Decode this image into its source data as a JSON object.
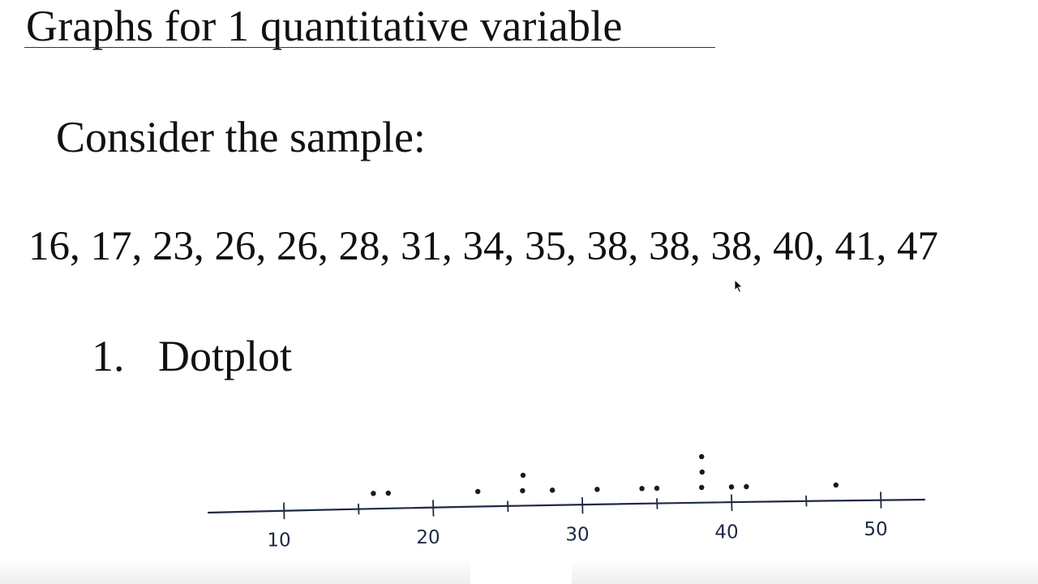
{
  "slide": {
    "title": "Graphs for 1 quantitative variable",
    "prompt": "Consider the sample:",
    "sample_text": "16, 17, 23, 26, 26, 28, 31, 34, 35, 38, 38, 38, 40, 41, 47",
    "section_number": "1.",
    "section_title": "Dotplot"
  },
  "chart_data": {
    "type": "scatter",
    "points": [
      {
        "x": 16,
        "count": 1
      },
      {
        "x": 17,
        "count": 1
      },
      {
        "x": 23,
        "count": 1
      },
      {
        "x": 26,
        "count": 2
      },
      {
        "x": 28,
        "count": 1
      },
      {
        "x": 31,
        "count": 1
      },
      {
        "x": 34,
        "count": 1
      },
      {
        "x": 35,
        "count": 1
      },
      {
        "x": 38,
        "count": 3
      },
      {
        "x": 40,
        "count": 1
      },
      {
        "x": 41,
        "count": 1
      },
      {
        "x": 47,
        "count": 1
      }
    ],
    "tick_values": [
      10,
      15,
      20,
      25,
      30,
      35,
      40,
      45,
      50
    ],
    "tick_labels": [
      "10",
      "20",
      "30",
      "40",
      "50"
    ],
    "xlim": [
      5,
      52
    ],
    "title": "",
    "xlabel": "",
    "ylabel": ""
  },
  "colors": {
    "text": "#111111",
    "axis_ink": "#1e2a44",
    "dot_ink": "#1a1a1a"
  }
}
